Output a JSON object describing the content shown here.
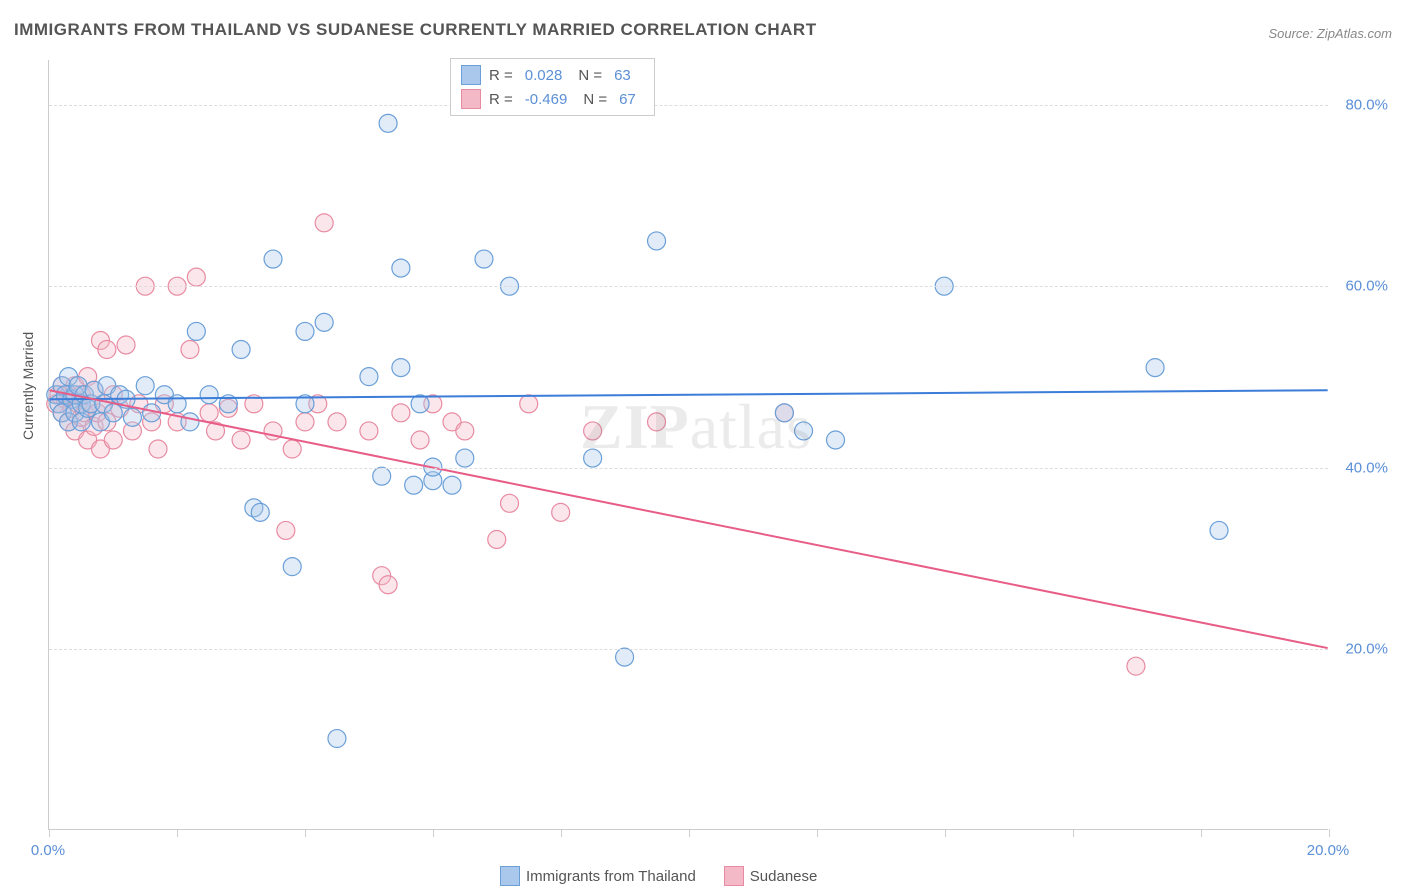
{
  "title": "IMMIGRANTS FROM THAILAND VS SUDANESE CURRENTLY MARRIED CORRELATION CHART",
  "source": "Source: ZipAtlas.com",
  "watermark": "ZIPatlas",
  "y_axis_title": "Currently Married",
  "chart": {
    "type": "scatter",
    "xlim": [
      0,
      20
    ],
    "ylim": [
      0,
      85
    ],
    "x_ticks": [
      0,
      2,
      4,
      6,
      8,
      10,
      12,
      14,
      16,
      18,
      20
    ],
    "x_labels_shown": {
      "0": "0.0%",
      "20": "20.0%"
    },
    "y_ticks": [
      20,
      40,
      60,
      80
    ],
    "y_labels": {
      "20": "20.0%",
      "40": "40.0%",
      "60": "60.0%",
      "80": "80.0%"
    },
    "background_color": "#ffffff",
    "grid_color": "#dddddd",
    "axis_color": "#cccccc",
    "tick_label_color": "#5b8fd6",
    "marker_radius": 9,
    "marker_stroke_width": 1.2,
    "marker_fill_opacity": 0.35,
    "series": [
      {
        "name": "Immigrants from Thailand",
        "color_fill": "#a9c8ec",
        "color_stroke": "#6a9fd8",
        "line_color": "#3b7dd8",
        "line_width": 2,
        "r_value": "0.028",
        "n_value": "63",
        "regression": {
          "x1": 0,
          "y1": 47.5,
          "x2": 20,
          "y2": 48.5
        },
        "points": [
          [
            0.1,
            48
          ],
          [
            0.15,
            47
          ],
          [
            0.2,
            49
          ],
          [
            0.2,
            46
          ],
          [
            0.25,
            48
          ],
          [
            0.3,
            50
          ],
          [
            0.3,
            45
          ],
          [
            0.35,
            47.5
          ],
          [
            0.4,
            48
          ],
          [
            0.4,
            46
          ],
          [
            0.45,
            49
          ],
          [
            0.5,
            47
          ],
          [
            0.5,
            45
          ],
          [
            0.55,
            48
          ],
          [
            0.6,
            46.5
          ],
          [
            0.65,
            47
          ],
          [
            0.7,
            48.5
          ],
          [
            0.8,
            45
          ],
          [
            0.85,
            47
          ],
          [
            0.9,
            49
          ],
          [
            1.0,
            46
          ],
          [
            1.1,
            48
          ],
          [
            1.2,
            47.5
          ],
          [
            1.3,
            45.5
          ],
          [
            1.5,
            49
          ],
          [
            1.6,
            46
          ],
          [
            1.8,
            48
          ],
          [
            2.0,
            47
          ],
          [
            2.2,
            45
          ],
          [
            2.3,
            55
          ],
          [
            2.5,
            48
          ],
          [
            2.8,
            47
          ],
          [
            3.0,
            53
          ],
          [
            3.2,
            35.5
          ],
          [
            3.3,
            35
          ],
          [
            3.5,
            63
          ],
          [
            3.8,
            29
          ],
          [
            4.0,
            55
          ],
          [
            4.0,
            47
          ],
          [
            4.3,
            56
          ],
          [
            4.5,
            10
          ],
          [
            5.0,
            50
          ],
          [
            5.2,
            39
          ],
          [
            5.3,
            78
          ],
          [
            5.5,
            51
          ],
          [
            5.5,
            62
          ],
          [
            5.7,
            38
          ],
          [
            5.8,
            47
          ],
          [
            6.0,
            38.5
          ],
          [
            6.0,
            40
          ],
          [
            6.3,
            38
          ],
          [
            6.5,
            41
          ],
          [
            6.8,
            63
          ],
          [
            7.2,
            60
          ],
          [
            8.5,
            41
          ],
          [
            9.0,
            19
          ],
          [
            9.5,
            65
          ],
          [
            11.5,
            46
          ],
          [
            11.8,
            44
          ],
          [
            12.3,
            43
          ],
          [
            14.0,
            60
          ],
          [
            17.3,
            51
          ],
          [
            18.3,
            33
          ]
        ]
      },
      {
        "name": "Sudanese",
        "color_fill": "#f4b9c6",
        "color_stroke": "#e88ba2",
        "line_color": "#e85d87",
        "line_width": 2,
        "r_value": "-0.469",
        "n_value": "67",
        "regression": {
          "x1": 0,
          "y1": 48.5,
          "x2": 20,
          "y2": 20
        },
        "points": [
          [
            0.1,
            47
          ],
          [
            0.15,
            48
          ],
          [
            0.2,
            46
          ],
          [
            0.2,
            49
          ],
          [
            0.25,
            47.5
          ],
          [
            0.3,
            45
          ],
          [
            0.3,
            48
          ],
          [
            0.35,
            46.5
          ],
          [
            0.4,
            49
          ],
          [
            0.4,
            44
          ],
          [
            0.45,
            47
          ],
          [
            0.5,
            48
          ],
          [
            0.5,
            45.5
          ],
          [
            0.55,
            46
          ],
          [
            0.6,
            50
          ],
          [
            0.6,
            43
          ],
          [
            0.65,
            47
          ],
          [
            0.7,
            48.5
          ],
          [
            0.7,
            44.5
          ],
          [
            0.75,
            46
          ],
          [
            0.8,
            54
          ],
          [
            0.8,
            42
          ],
          [
            0.85,
            47
          ],
          [
            0.9,
            53
          ],
          [
            0.9,
            45
          ],
          [
            1.0,
            48
          ],
          [
            1.0,
            43
          ],
          [
            1.1,
            46.5
          ],
          [
            1.2,
            53.5
          ],
          [
            1.3,
            44
          ],
          [
            1.4,
            47
          ],
          [
            1.5,
            60
          ],
          [
            1.6,
            45
          ],
          [
            1.7,
            42
          ],
          [
            1.8,
            47
          ],
          [
            2.0,
            60
          ],
          [
            2.0,
            45
          ],
          [
            2.2,
            53
          ],
          [
            2.3,
            61
          ],
          [
            2.5,
            46
          ],
          [
            2.6,
            44
          ],
          [
            2.8,
            46.5
          ],
          [
            3.0,
            43
          ],
          [
            3.2,
            47
          ],
          [
            3.5,
            44
          ],
          [
            3.7,
            33
          ],
          [
            3.8,
            42
          ],
          [
            4.0,
            45
          ],
          [
            4.2,
            47
          ],
          [
            4.3,
            67
          ],
          [
            4.5,
            45
          ],
          [
            5.0,
            44
          ],
          [
            5.2,
            28
          ],
          [
            5.3,
            27
          ],
          [
            5.5,
            46
          ],
          [
            5.8,
            43
          ],
          [
            6.0,
            47
          ],
          [
            6.3,
            45
          ],
          [
            6.5,
            44
          ],
          [
            7.0,
            32
          ],
          [
            7.2,
            36
          ],
          [
            7.5,
            47
          ],
          [
            8.0,
            35
          ],
          [
            8.5,
            44
          ],
          [
            9.5,
            45
          ],
          [
            11.5,
            46
          ],
          [
            17.0,
            18
          ]
        ]
      }
    ]
  },
  "legend_top": {
    "r_label": "R =",
    "n_label": "N ="
  },
  "legend_bottom": {
    "items": [
      {
        "label": "Immigrants from Thailand",
        "fill": "#a9c8ec",
        "stroke": "#6a9fd8"
      },
      {
        "label": "Sudanese",
        "fill": "#f4b9c6",
        "stroke": "#e88ba2"
      }
    ]
  }
}
